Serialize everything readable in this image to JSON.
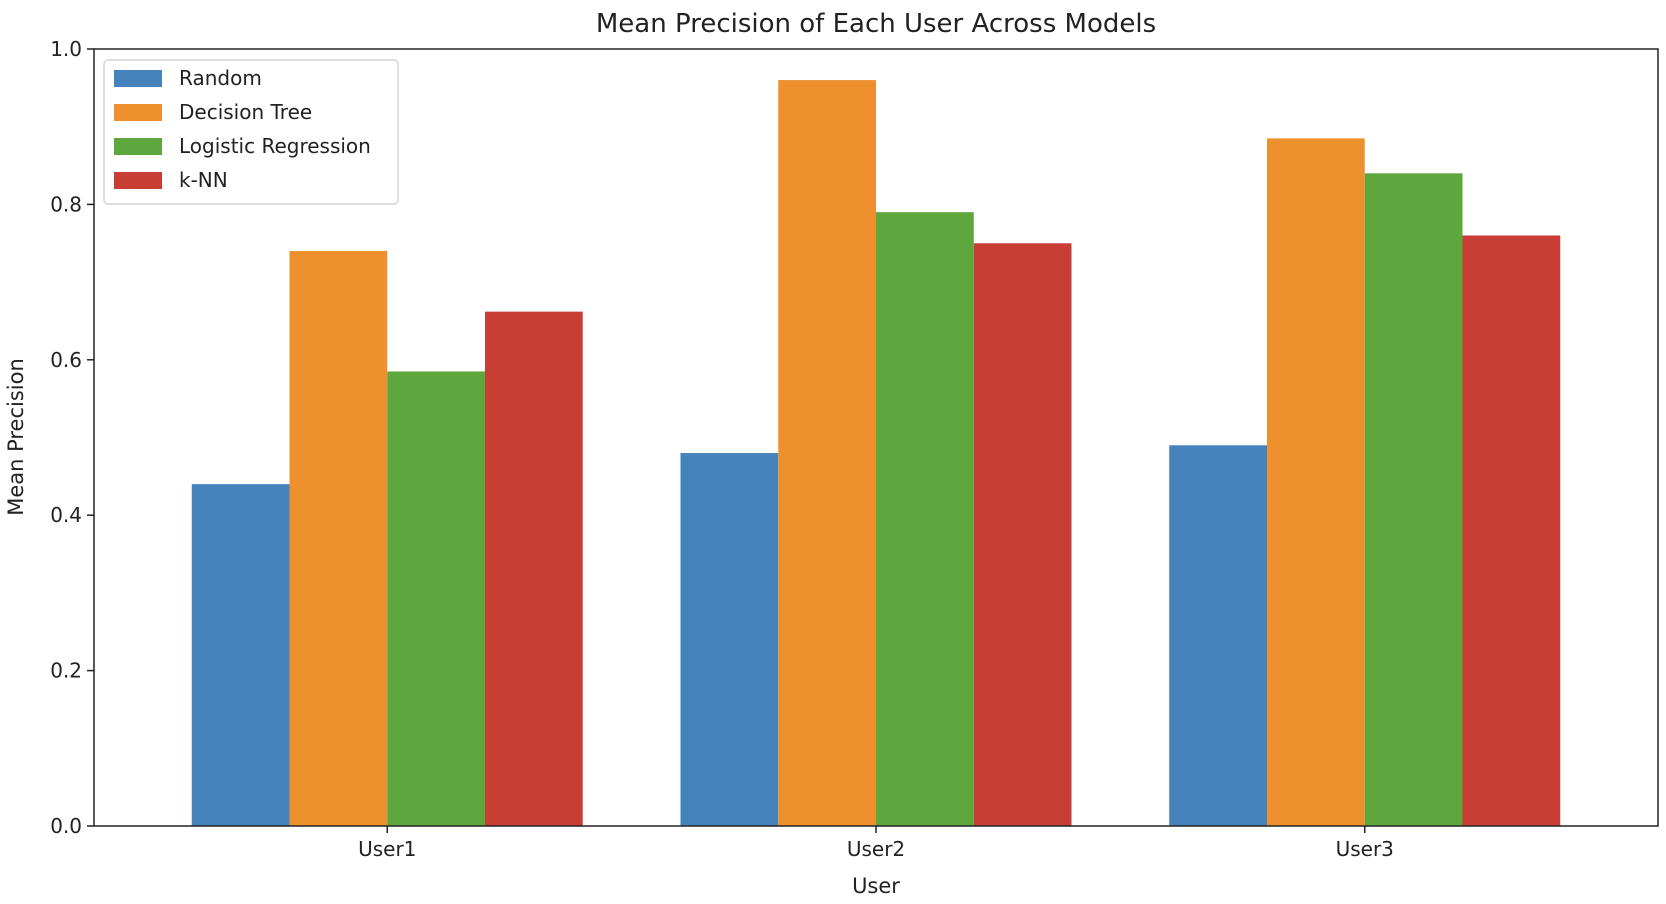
{
  "chart_data": {
    "type": "bar",
    "title": "Mean Precision of Each User Across Models",
    "xlabel": "User",
    "ylabel": "Mean Precision",
    "categories": [
      "User1",
      "User2",
      "User3"
    ],
    "ylim": [
      0,
      1.0
    ],
    "yticks": [
      "0.0",
      "0.2",
      "0.4",
      "0.6",
      "0.8",
      "1.0"
    ],
    "legend_position": "top-left",
    "grid": false,
    "series": [
      {
        "name": "Random",
        "color": "#4682bc",
        "values": [
          0.44,
          0.48,
          0.49
        ]
      },
      {
        "name": "Decision Tree",
        "color": "#ed902d",
        "values": [
          0.74,
          0.96,
          0.885
        ]
      },
      {
        "name": "Logistic Regression",
        "color": "#5ea73c",
        "values": [
          0.585,
          0.79,
          0.84
        ]
      },
      {
        "name": "k-NN",
        "color": "#c83d34",
        "values": [
          0.662,
          0.75,
          0.76
        ]
      }
    ]
  }
}
